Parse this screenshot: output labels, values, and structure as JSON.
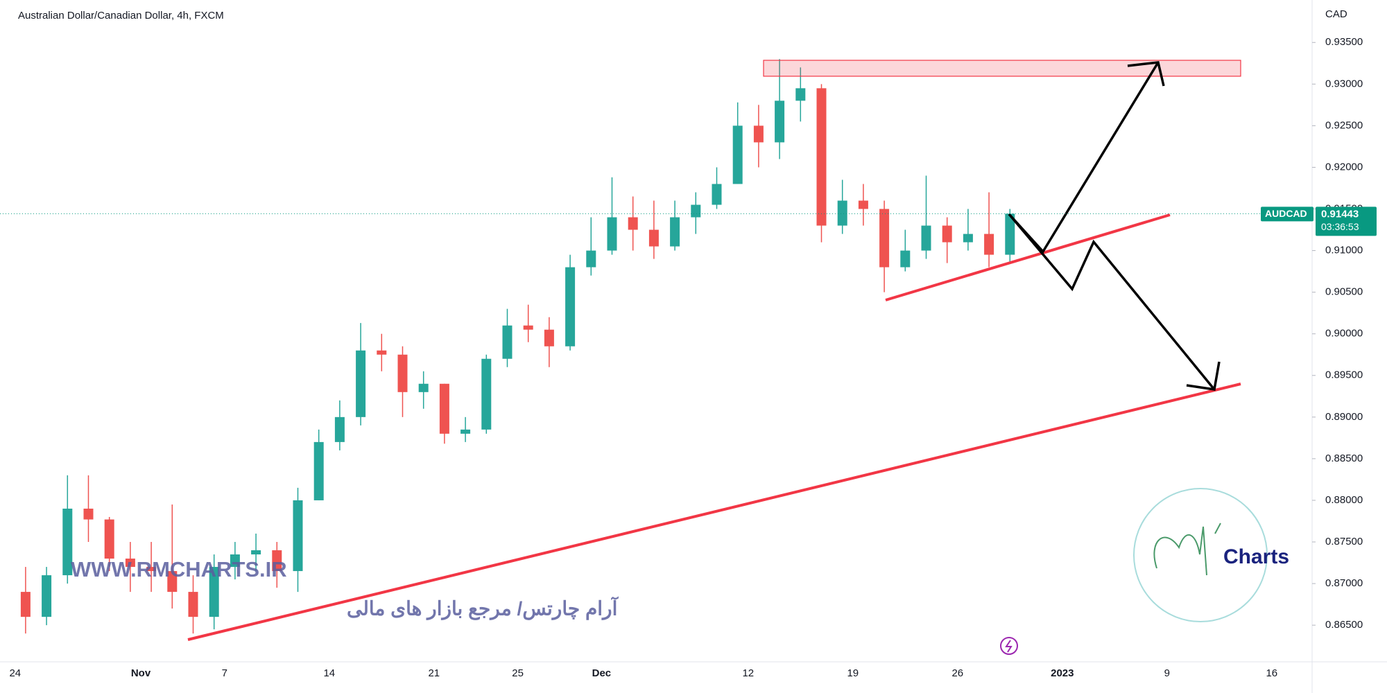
{
  "chart_data": {
    "type": "candlestick",
    "title": "Australian Dollar/Canadian Dollar, 4h, FXCM",
    "y_unit": "CAD",
    "categories": [
      "24",
      null,
      null,
      null,
      null,
      null,
      "Nov",
      null,
      null,
      null,
      "7",
      null,
      null,
      null,
      null,
      "14",
      null,
      null,
      null,
      null,
      "21",
      null,
      null,
      null,
      "25",
      null,
      null,
      null,
      "Dec",
      null,
      null,
      null,
      null,
      null,
      null,
      "12",
      null,
      null,
      null,
      null,
      "19",
      null,
      null,
      null,
      null,
      "26",
      null,
      null,
      null,
      null,
      "2023",
      null,
      null,
      null,
      null,
      "9",
      null,
      null,
      null,
      null,
      "16",
      null
    ],
    "open": [
      0.869,
      0.866,
      0.871,
      0.879,
      0.8777,
      0.873,
      0.872,
      0.8715,
      0.869,
      0.866,
      0.872,
      0.8735,
      0.874,
      0.8715,
      0.88,
      0.887,
      0.89,
      0.898,
      0.8975,
      0.893,
      0.894,
      0.888,
      0.8885,
      0.897,
      0.901,
      0.9005,
      0.8985,
      0.908,
      0.91,
      0.914,
      0.9125,
      0.9105,
      0.914,
      0.9155,
      0.918,
      0.925,
      0.923,
      0.928,
      0.9295,
      0.913,
      0.916,
      0.915,
      0.908,
      0.91,
      0.913,
      0.911,
      0.912,
      0.9095,
      null,
      null,
      null,
      null,
      null,
      null,
      null,
      null,
      null,
      null,
      null,
      null,
      null,
      null
    ],
    "high": [
      0.872,
      0.872,
      0.883,
      0.883,
      0.878,
      0.875,
      0.875,
      0.8795,
      0.871,
      0.8735,
      0.875,
      0.876,
      0.875,
      0.8815,
      0.8885,
      0.892,
      0.9013,
      0.9,
      0.8985,
      0.8955,
      0.894,
      0.89,
      0.8975,
      0.903,
      0.9035,
      0.902,
      0.9095,
      0.914,
      0.9188,
      0.9165,
      0.916,
      0.916,
      0.917,
      0.92,
      0.9278,
      0.9275,
      0.933,
      0.932,
      0.93,
      0.9185,
      0.918,
      0.916,
      0.9125,
      0.919,
      0.914,
      0.915,
      0.917,
      0.915,
      null,
      null,
      null,
      null,
      null,
      null,
      null,
      null,
      null,
      null,
      null,
      null,
      null,
      null
    ],
    "low": [
      0.864,
      0.865,
      0.87,
      0.875,
      0.8715,
      0.869,
      0.869,
      0.867,
      0.864,
      0.8645,
      0.8705,
      0.8715,
      0.8695,
      0.869,
      0.88,
      0.886,
      0.889,
      0.8955,
      0.89,
      0.891,
      0.8868,
      0.887,
      0.888,
      0.896,
      0.899,
      0.896,
      0.898,
      0.907,
      0.9095,
      0.91,
      0.909,
      0.91,
      0.912,
      0.915,
      0.918,
      0.92,
      0.921,
      0.9255,
      0.911,
      0.912,
      0.913,
      0.905,
      0.9075,
      0.909,
      0.9085,
      0.91,
      0.908,
      0.9085,
      null,
      null,
      null,
      null,
      null,
      null,
      null,
      null,
      null,
      null,
      null,
      null,
      null,
      null
    ],
    "close": [
      0.866,
      0.871,
      0.879,
      0.8777,
      0.873,
      0.872,
      0.8715,
      0.869,
      0.866,
      0.872,
      0.8735,
      0.874,
      0.8715,
      0.88,
      0.887,
      0.89,
      0.898,
      0.8975,
      0.893,
      0.894,
      0.888,
      0.8885,
      0.897,
      0.901,
      0.9005,
      0.8985,
      0.908,
      0.91,
      0.914,
      0.9125,
      0.9105,
      0.914,
      0.9155,
      0.918,
      0.925,
      0.923,
      0.928,
      0.9295,
      0.913,
      0.916,
      0.915,
      0.908,
      0.91,
      0.913,
      0.911,
      0.912,
      0.9095,
      0.91443,
      null,
      null,
      null,
      null,
      null,
      null,
      null,
      null,
      null,
      null,
      null,
      null,
      null,
      null
    ],
    "up_color": "#26a69a",
    "down_color": "#ef5350",
    "ylim": [
      0.8606,
      0.9401
    ],
    "yticks": [
      {
        "value": 0.865,
        "label": "0.86500"
      },
      {
        "value": 0.87,
        "label": "0.87000"
      },
      {
        "value": 0.875,
        "label": "0.87500"
      },
      {
        "value": 0.88,
        "label": "0.88000"
      },
      {
        "value": 0.885,
        "label": "0.88500"
      },
      {
        "value": 0.89,
        "label": "0.89000"
      },
      {
        "value": 0.895,
        "label": "0.89500"
      },
      {
        "value": 0.9,
        "label": "0.90000"
      },
      {
        "value": 0.905,
        "label": "0.90500"
      },
      {
        "value": 0.91,
        "label": "0.91000"
      },
      {
        "value": 0.915,
        "label": "0.91500"
      },
      {
        "value": 0.92,
        "label": "0.92000"
      },
      {
        "value": 0.925,
        "label": "0.92500"
      },
      {
        "value": 0.93,
        "label": "0.93000"
      },
      {
        "value": 0.935,
        "label": "0.93500"
      }
    ],
    "last_price": {
      "symbol": "AUDCAD",
      "value": 0.91443,
      "countdown": "03:36:53",
      "color": "#089981"
    }
  },
  "watermark": {
    "site": "WWW.RMCHARTS.IR",
    "tagline": "آرام چارتس/ مرجع بازار های مالی",
    "logo_text": "Charts"
  }
}
